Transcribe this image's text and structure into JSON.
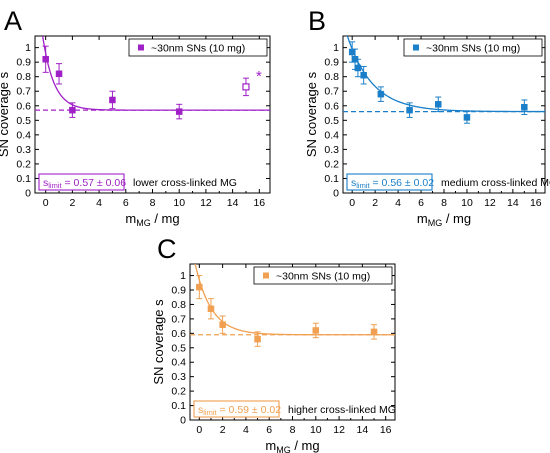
{
  "chart_data": [
    {
      "type": "scatter",
      "panel_letter": "A",
      "color": "#a020c8",
      "xlabel_main": "m",
      "xlabel_sub": "MG",
      "xlabel_tail": " / mg",
      "ylabel": "SN coverage s",
      "xlim": [
        -0.8,
        16.8
      ],
      "ylim": [
        0,
        1.08
      ],
      "xticks": [
        0,
        2,
        4,
        6,
        8,
        10,
        12,
        14,
        16
      ],
      "yticks": [
        0,
        0.1,
        0.2,
        0.3,
        0.4,
        0.5,
        0.6,
        0.7,
        0.8,
        0.9,
        1
      ],
      "legend": "~30nm SNs (10 mg)",
      "series": [
        {
          "name": "~30nm SNs (10 mg)",
          "x": [
            0,
            1,
            2,
            5,
            10,
            15
          ],
          "y": [
            0.92,
            0.82,
            0.57,
            0.64,
            0.56,
            0.73
          ],
          "yerr": [
            0.09,
            0.07,
            0.05,
            0.06,
            0.05,
            0.06
          ],
          "open": [
            false,
            false,
            false,
            false,
            false,
            true
          ]
        }
      ],
      "fit": {
        "limit": 0.57,
        "amplitude": 0.39,
        "decay": 0.85
      },
      "limit_label_main": "s",
      "limit_label_sub": "limit",
      "limit_label_value": " = 0.57 ± 0.06",
      "annotation": "lower cross-linked MG",
      "star": "*"
    },
    {
      "type": "scatter",
      "panel_letter": "B",
      "color": "#1a7fc8",
      "xlabel_main": "m",
      "xlabel_sub": "MG",
      "xlabel_tail": " / mg",
      "ylabel": "SN coverage s",
      "xlim": [
        -0.8,
        16.8
      ],
      "ylim": [
        0,
        1.08
      ],
      "xticks": [
        0,
        2,
        4,
        6,
        8,
        10,
        12,
        14,
        16
      ],
      "yticks": [
        0,
        0.1,
        0.2,
        0.3,
        0.4,
        0.5,
        0.6,
        0.7,
        0.8,
        0.9,
        1
      ],
      "legend": "~30nm SNs (10 mg)",
      "series": [
        {
          "name": "~30nm SNs (10 mg)",
          "x": [
            0,
            0.25,
            0.5,
            1,
            2.5,
            5,
            7.5,
            10,
            15
          ],
          "y": [
            0.97,
            0.92,
            0.86,
            0.81,
            0.68,
            0.57,
            0.61,
            0.52,
            0.59
          ],
          "yerr": [
            0.07,
            0.07,
            0.06,
            0.06,
            0.05,
            0.05,
            0.05,
            0.04,
            0.05
          ],
          "open": [
            false,
            false,
            false,
            false,
            false,
            false,
            false,
            false,
            false
          ]
        }
      ],
      "fit": {
        "limit": 0.56,
        "amplitude": 0.43,
        "decay": 2.2
      },
      "limit_label_main": "s",
      "limit_label_sub": "limit",
      "limit_label_value": " = 0.56 ± 0.02",
      "annotation": "medium cross-linked MG",
      "star": ""
    },
    {
      "type": "scatter",
      "panel_letter": "C",
      "color": "#f0a050",
      "xlabel_main": "m",
      "xlabel_sub": "MG",
      "xlabel_tail": " / mg",
      "ylabel": "SN coverage s",
      "xlim": [
        -0.8,
        16.8
      ],
      "ylim": [
        0,
        1.08
      ],
      "xticks": [
        0,
        2,
        4,
        6,
        8,
        10,
        12,
        14,
        16
      ],
      "yticks": [
        0,
        0.1,
        0.2,
        0.3,
        0.4,
        0.5,
        0.6,
        0.7,
        0.8,
        0.9,
        1
      ],
      "legend": "~30nm SNs (10 mg)",
      "series": [
        {
          "name": "~30nm SNs (10 mg)",
          "x": [
            0,
            1,
            2,
            5,
            10,
            15
          ],
          "y": [
            0.92,
            0.77,
            0.66,
            0.56,
            0.62,
            0.61
          ],
          "yerr": [
            0.08,
            0.07,
            0.06,
            0.05,
            0.05,
            0.05
          ],
          "open": [
            false,
            false,
            false,
            false,
            false,
            false
          ]
        }
      ],
      "fit": {
        "limit": 0.59,
        "amplitude": 0.38,
        "decay": 1.4
      },
      "limit_label_main": "s",
      "limit_label_sub": "limit",
      "limit_label_value": " = 0.59 ± 0.02",
      "annotation": "higher cross-linked MG",
      "star": ""
    }
  ]
}
